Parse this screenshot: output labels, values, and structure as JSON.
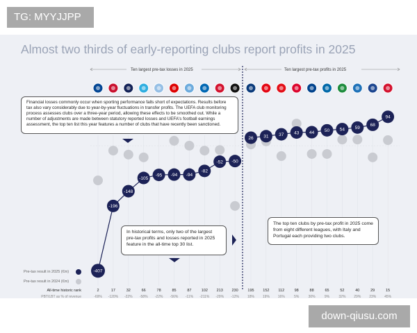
{
  "watermark_top": "TG: MYYJJPP",
  "watermark_bottom": "down-qiusu.com",
  "title": "Almost two thirds of early-reporting clubs report profits in 2025",
  "losses_header": "Ten largest pre-tax losses in 2025",
  "profits_header": "Ten largest pre-tax profits in 2025",
  "note_losses": "Financial losses commonly occur when sporting performance falls short of expectations. Results before tax also vary considerably due to year-by-year fluctuations in transfer profits. The UEFA club monitoring process assesses clubs over a three-year period, allowing these effects to be smoothed out. While a number of adjustments are made between statutory reported losses and UEFA's football earnings assessment, the top ten list this year features a number of clubs that have recently been sanctioned.",
  "note_history": "In historical terms, only two of the largest pre-tax profits and losses reported in 2025 feature in the all-time top 30 list.",
  "note_profits": "The top ten clubs by pre-tax profit in 2025 come from eight different leagues, with Italy and Portugal each providing two clubs.",
  "legend": {
    "y2025": "Pre-tax result in 2025 (€m)",
    "y2024": "Pre-tax result in 2024 (€m)"
  },
  "row_labels": {
    "rank": "All-time historic rank",
    "pct": "PBT/LBT as % of revenue"
  },
  "colors": {
    "y2025": "#1c2257",
    "y2024": "#c9cbd1",
    "title": "#9aa3b6"
  },
  "chart_data": {
    "type": "scatter",
    "title": "Almost two thirds of early-reporting clubs report profits in 2025",
    "unit": "€m",
    "clubs_logos": [
      "chelsea-logo",
      "lyon-logo",
      "tottenham-logo",
      "marseille-logo",
      "aston-villa-logo",
      "nottingham-forest-logo",
      "manchester-city-logo",
      "strasbourg-logo",
      "ajax-logo",
      "juventus-logo",
      "club-brugge-logo",
      "feyenoord-logo",
      "benfica-logo",
      "bayern-logo",
      "porto-logo",
      "inter-logo",
      "celtic-logo",
      "atalanta-logo",
      "crystal-palace-logo",
      "lille-logo"
    ],
    "logo_colors": [
      "#034694",
      "#c8102e",
      "#132257",
      "#2faee0",
      "#95bfe5",
      "#dd0000",
      "#6cabdd",
      "#0067b3",
      "#d2122e",
      "#111111",
      "#0a3a7a",
      "#e30613",
      "#e20e17",
      "#dc052d",
      "#00428c",
      "#0068a8",
      "#1e8c3e",
      "#1e71b8",
      "#1b458f",
      "#d3122e"
    ],
    "series": [
      {
        "name": "Pre-tax result in 2025 (€m)",
        "values": [
          -407,
          -196,
          -148,
          -105,
          -95,
          -94,
          -94,
          -82,
          -52,
          -50,
          26,
          31,
          37,
          43,
          44,
          50,
          54,
          59,
          68,
          94
        ],
        "labels": [
          "-407",
          "-196",
          "-148",
          "-105",
          "-95",
          "-94",
          "-94",
          "-82",
          "-52",
          "-50",
          "26",
          "31",
          "37",
          "43",
          "44",
          "50",
          "54",
          "59",
          "68",
          "94"
        ]
      },
      {
        "name": "Pre-tax result in 2024 (€m)",
        "values": [
          -113,
          -16,
          -29,
          -38,
          -95,
          16,
          0,
          -16,
          -14,
          -196,
          4,
          14,
          -34,
          72,
          -27,
          -27,
          20,
          20,
          -38,
          18
        ]
      }
    ],
    "all_time_rank": [
      "2",
      "17",
      "32",
      "66",
      "78",
      "85",
      "87",
      "102",
      "213",
      "230",
      "195",
      "152",
      "112",
      "98",
      "88",
      "65",
      "52",
      "40",
      "29",
      "15"
    ],
    "pct_of_revenue": [
      "-69%",
      "-120%",
      "-22%",
      "-58%",
      "-22%",
      "-56%",
      "-11%",
      "-211%",
      "-29%",
      "-12%",
      "18%",
      "19%",
      "16%",
      "5%",
      "30%",
      "9%",
      "32%",
      "29%",
      "23%",
      "45%"
    ]
  }
}
